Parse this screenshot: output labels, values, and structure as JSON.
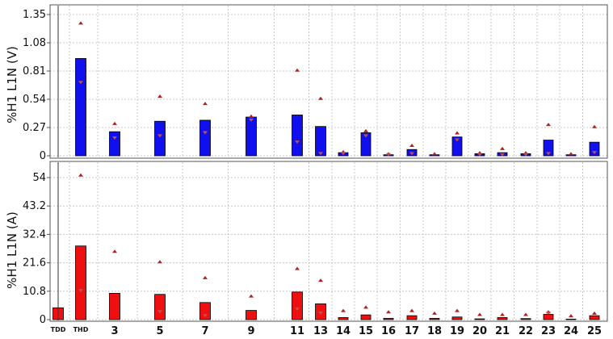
{
  "chart_data": {
    "type": "bar",
    "categories": [
      "TDD",
      "THD",
      "3",
      "5",
      "7",
      "9",
      "11",
      "13",
      "14",
      "15",
      "16",
      "17",
      "18",
      "19",
      "20",
      "21",
      "22",
      "23",
      "24",
      "25"
    ],
    "colors": {
      "top": "#1010ee",
      "bottom": "#ee1010",
      "marker": "#b02020",
      "grid": "#c8c8c8",
      "axis": "#555555"
    },
    "panels": [
      {
        "ylabel": "%H1 L1N (V)",
        "ylim": [
          0,
          1.35
        ],
        "yticks": [
          "0",
          "0.27",
          "0.54",
          "0.81",
          "1.08",
          "1.35"
        ],
        "ytick_values": [
          0,
          0.27,
          0.54,
          0.81,
          1.08,
          1.35
        ],
        "values": [
          0,
          0.93,
          0.23,
          0.33,
          0.34,
          0.37,
          0.39,
          0.28,
          0.03,
          0.22,
          0.01,
          0.06,
          0.01,
          0.18,
          0.02,
          0.03,
          0.02,
          0.15,
          0.01,
          0.13
        ],
        "max_markers": [
          0,
          1.27,
          0.31,
          0.57,
          0.5,
          0.38,
          0.82,
          0.55,
          0.04,
          0.24,
          0.02,
          0.1,
          0.02,
          0.22,
          0.03,
          0.07,
          0.03,
          0.3,
          0.02,
          0.28
        ],
        "min_markers": [
          0,
          0.7,
          0.17,
          0.19,
          0.22,
          0.34,
          0.13,
          0.02,
          0.02,
          0.19,
          0.01,
          0.02,
          0.0,
          0.15,
          0.01,
          0.01,
          0.01,
          0.02,
          0.0,
          0.03
        ]
      },
      {
        "ylabel": "%H1 L1N (A)",
        "ylim": [
          0,
          54
        ],
        "yticks": [
          "0",
          "10.8",
          "21.6",
          "32.4",
          "43.2",
          "54"
        ],
        "ytick_values": [
          0,
          10.8,
          21.6,
          32.4,
          43.2,
          54
        ],
        "values": [
          4.5,
          28,
          10,
          9.6,
          6.5,
          3.5,
          10.5,
          6,
          0.8,
          1.8,
          0.5,
          1.5,
          0.5,
          1,
          0.3,
          0.8,
          0.4,
          2,
          0.2,
          1.5
        ],
        "max_markers": [
          0,
          55,
          26,
          22,
          16,
          9,
          19.5,
          15,
          3.5,
          4.8,
          3,
          3.5,
          2.5,
          3.5,
          2,
          2,
          2,
          3,
          1.5,
          2.5
        ],
        "min_markers": [
          0,
          11,
          0,
          3,
          1.5,
          0,
          4,
          2.5,
          0,
          0,
          0,
          0,
          0,
          0,
          0,
          0,
          0,
          2.5,
          0,
          0
        ]
      }
    ]
  }
}
